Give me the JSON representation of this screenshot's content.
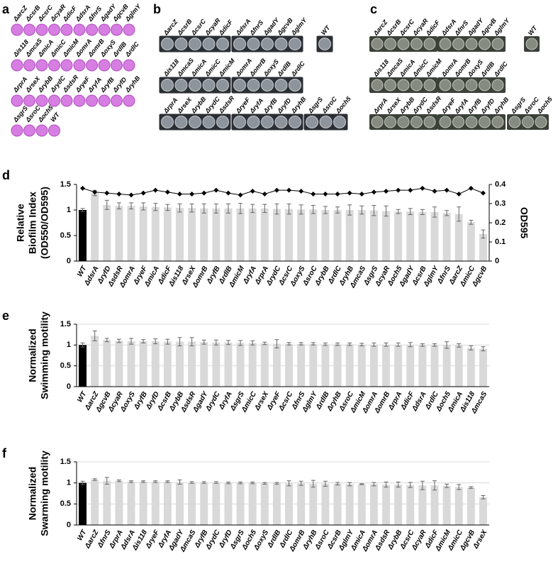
{
  "plates": [
    {
      "label": "a",
      "rows": [
        [
          [
            "ΔarcZ",
            "ΔcsrB",
            "ΔcsrC",
            "ΔcyaR",
            "ΔdicF"
          ],
          [
            "ΔdsrA",
            "ΔfnrS",
            "ΔgadY",
            "ΔgcvB",
            "ΔglmY"
          ]
        ],
        [
          [
            "Δis118",
            "ΔmcaS",
            "ΔmicA",
            "ΔmicC",
            "ΔmicM"
          ],
          [
            "ΔomrA",
            "ΔomrB",
            "ΔoxyS",
            "ΔrdlB",
            "ΔrdlC"
          ]
        ],
        [
          [
            "ΔrprA",
            "ΔrseX",
            "ΔrybB",
            "ΔrydC",
            "ΔsdsR"
          ],
          [
            "ΔryeF",
            "ΔryfA",
            "ΔryfB",
            "ΔryfD",
            "ΔryhB"
          ]
        ],
        [
          [
            "ΔsgrS",
            "ΔsroC",
            "Δoch5",
            "WT"
          ]
        ]
      ]
    },
    {
      "label": "b",
      "rows": [
        [
          [
            "ΔarcZ",
            "ΔcsrB",
            "ΔcsrC",
            "ΔcyaR",
            "ΔdicF"
          ],
          [
            "ΔdsrA",
            "ΔfnrS",
            "ΔgadY",
            "ΔgcvB",
            "ΔglmY"
          ],
          [
            "WT"
          ]
        ],
        [
          [
            "Δis118",
            "ΔmcaS",
            "ΔmicA",
            "ΔmicC",
            "ΔmicM"
          ],
          [
            "ΔomrA",
            "ΔomrB",
            "ΔoxyS",
            "ΔrdlB",
            "ΔrdlC"
          ]
        ],
        [
          [
            "ΔrprA",
            "ΔrseX",
            "ΔrybB",
            "ΔrydC",
            "ΔsdsR"
          ],
          [
            "ΔryeF",
            "ΔryfA",
            "ΔryfB",
            "ΔryfD",
            "ΔryhB"
          ],
          [
            "ΔsgrS",
            "ΔsroC",
            "Δoch5"
          ]
        ]
      ]
    },
    {
      "label": "c",
      "rows": [
        [
          [
            "ΔarcZ",
            "ΔcsrB",
            "ΔcsrC",
            "ΔcyaR",
            "ΔdicF"
          ],
          [
            "ΔdsrA",
            "ΔfnrS",
            "ΔgadY",
            "ΔgcvB",
            "ΔglmY"
          ],
          [
            "WT"
          ]
        ],
        [
          [
            "Δis118",
            "ΔmcaS",
            "ΔmicA",
            "ΔmicC",
            "ΔmicM"
          ],
          [
            "ΔomrA",
            "ΔomrB",
            "ΔoxyS",
            "ΔrdlB",
            "ΔrdlC"
          ]
        ],
        [
          [
            "ΔrprA",
            "ΔrseX",
            "ΔrybB",
            "ΔrydC",
            "ΔsdsR"
          ],
          [
            "ΔryeF",
            "ΔryfA",
            "ΔryfB",
            "ΔryfD",
            "ΔryhB"
          ],
          [
            "ΔsgrS",
            "ΔsroC",
            "Δoch5"
          ]
        ]
      ]
    }
  ],
  "chart_data": [
    {
      "type": "bar",
      "panel": "d",
      "ylabel": [
        "Relative",
        "Biofilm Index",
        "(OD550/OD595)"
      ],
      "y2label": "OD595",
      "categories": [
        "WT",
        "ΔdsrA",
        "ΔryfD",
        "ΔsdsR",
        "ΔomrA",
        "ΔryeF",
        "ΔmicA",
        "ΔdicF",
        "Δis118",
        "ΔrseX",
        "ΔomrB",
        "ΔryfB",
        "ΔrdlB",
        "ΔmicM",
        "ΔryfA",
        "ΔrprA",
        "ΔrydC",
        "ΔcsrC",
        "ΔoxyS",
        "ΔsroC",
        "ΔrybB",
        "ΔrdlC",
        "ΔryhB",
        "ΔmcaS",
        "ΔsgrS",
        "ΔcyaR",
        "Δoch5",
        "ΔgadY",
        "ΔcsrB",
        "ΔglmY",
        "ΔfnrS",
        "ΔarcZ",
        "ΔmicC",
        "ΔgcvB"
      ],
      "series": [
        {
          "type": "bar",
          "values": [
            1,
            1.33,
            1.1,
            1.08,
            1.08,
            1.07,
            1.06,
            1.05,
            1.04,
            1.04,
            1.03,
            1.03,
            1.03,
            1.03,
            1.03,
            1.03,
            1.02,
            1.02,
            1.01,
            1.01,
            1.0,
            1.0,
            1.0,
            1.0,
            0.99,
            0.98,
            0.97,
            0.97,
            0.96,
            0.96,
            0.94,
            0.92,
            0.76,
            0.53
          ],
          "errors": [
            0.03,
            0.05,
            0.09,
            0.06,
            0.06,
            0.07,
            0.07,
            0.06,
            0.08,
            0.08,
            0.09,
            0.09,
            0.09,
            0.1,
            0.08,
            0.08,
            0.1,
            0.1,
            0.09,
            0.08,
            0.07,
            0.06,
            0.1,
            0.08,
            0.1,
            0.1,
            0.04,
            0.06,
            0.05,
            0.1,
            0.05,
            0.14,
            0.04,
            0.08
          ],
          "colors": [
            "#000000",
            "#d9d9d9",
            "#d9d9d9",
            "#d9d9d9",
            "#d9d9d9",
            "#d9d9d9",
            "#d9d9d9",
            "#d9d9d9",
            "#d9d9d9",
            "#d9d9d9",
            "#d9d9d9",
            "#d9d9d9",
            "#d9d9d9",
            "#d9d9d9",
            "#d9d9d9",
            "#d9d9d9",
            "#d9d9d9",
            "#d9d9d9",
            "#d9d9d9",
            "#d9d9d9",
            "#d9d9d9",
            "#d9d9d9",
            "#d9d9d9",
            "#d9d9d9",
            "#d9d9d9",
            "#d9d9d9",
            "#d9d9d9",
            "#d9d9d9",
            "#d9d9d9",
            "#d9d9d9",
            "#d9d9d9",
            "#d9d9d9",
            "#d9d9d9",
            "#d9d9d9"
          ]
        },
        {
          "type": "line",
          "axis": "y2",
          "color": "#000000",
          "values": [
            0.38,
            0.36,
            0.355,
            0.35,
            0.345,
            0.355,
            0.37,
            0.36,
            0.35,
            0.35,
            0.355,
            0.37,
            0.355,
            0.345,
            0.365,
            0.35,
            0.37,
            0.37,
            0.365,
            0.35,
            0.35,
            0.35,
            0.355,
            0.35,
            0.36,
            0.365,
            0.37,
            0.37,
            0.38,
            0.365,
            0.37,
            0.35,
            0.38,
            0.355
          ]
        }
      ],
      "ylim": [
        0,
        1.5
      ],
      "yticks": [
        0,
        0.5,
        1,
        1.5
      ],
      "y2lim": [
        0,
        0.4
      ],
      "y2ticks": [
        0,
        0.1,
        0.2,
        0.3,
        0.4
      ],
      "grid": false
    },
    {
      "type": "bar",
      "panel": "e",
      "ylabel": [
        "Normalized",
        "Swimming motility"
      ],
      "categories": [
        "WT",
        "ΔarcZ",
        "ΔgcvB",
        "ΔcyaR",
        "ΔoxyS",
        "ΔryfB",
        "ΔryfD",
        "ΔcsrB",
        "ΔrybB",
        "ΔsdsR",
        "ΔgadY",
        "ΔrydC",
        "ΔryfA",
        "ΔsgrS",
        "ΔmicC",
        "ΔrseX",
        "ΔryeF",
        "ΔcsrC",
        "ΔfnrS",
        "ΔglmY",
        "ΔrdlB",
        "ΔryhB",
        "ΔsroC",
        "ΔmicM",
        "ΔomrA",
        "ΔomrB",
        "ΔrprA",
        "ΔdicF",
        "ΔdsrA",
        "ΔrdlC",
        "Δoch5",
        "ΔmicA",
        "Δis118",
        "ΔmcaS"
      ],
      "series": [
        {
          "type": "bar",
          "values": [
            1,
            1.22,
            1.12,
            1.1,
            1.09,
            1.09,
            1.09,
            1.08,
            1.08,
            1.08,
            1.07,
            1.06,
            1.06,
            1.05,
            1.05,
            1.04,
            1.03,
            1.03,
            1.03,
            1.03,
            1.02,
            1.02,
            1.02,
            1.01,
            1.01,
            1.01,
            1.01,
            1.01,
            1.0,
            1.0,
            1.0,
            0.99,
            0.93,
            0.91
          ],
          "errors": [
            0.05,
            0.12,
            0.04,
            0.04,
            0.07,
            0.04,
            0.06,
            0.06,
            0.1,
            0.1,
            0.05,
            0.06,
            0.05,
            0.06,
            0.05,
            0.03,
            0.1,
            0.03,
            0.03,
            0.03,
            0.03,
            0.03,
            0.03,
            0.03,
            0.04,
            0.04,
            0.04,
            0.05,
            0.03,
            0.03,
            0.08,
            0.04,
            0.05,
            0.05
          ],
          "colors": [
            "#000000",
            "#d9d9d9",
            "#d9d9d9",
            "#d9d9d9",
            "#d9d9d9",
            "#d9d9d9",
            "#d9d9d9",
            "#d9d9d9",
            "#d9d9d9",
            "#d9d9d9",
            "#d9d9d9",
            "#d9d9d9",
            "#d9d9d9",
            "#d9d9d9",
            "#d9d9d9",
            "#d9d9d9",
            "#d9d9d9",
            "#d9d9d9",
            "#d9d9d9",
            "#d9d9d9",
            "#d9d9d9",
            "#d9d9d9",
            "#d9d9d9",
            "#d9d9d9",
            "#d9d9d9",
            "#d9d9d9",
            "#d9d9d9",
            "#d9d9d9",
            "#d9d9d9",
            "#d9d9d9",
            "#d9d9d9",
            "#d9d9d9",
            "#d9d9d9",
            "#d9d9d9"
          ]
        }
      ],
      "ylim": [
        0,
        1.5
      ],
      "yticks": [
        0,
        0.5,
        1,
        1.5
      ],
      "grid": true
    },
    {
      "type": "bar",
      "panel": "f",
      "ylabel": [
        "Normalized",
        "Swarming motility"
      ],
      "categories": [
        "WT",
        "ΔarcZ",
        "ΔfnrS",
        "ΔrprA",
        "ΔdsrA",
        "Δis118",
        "ΔryeF",
        "ΔryfA",
        "ΔgadY",
        "ΔmcaS",
        "ΔryfB",
        "ΔrydC",
        "ΔryfD",
        "ΔsgrS",
        "Δoch5",
        "ΔoxyS",
        "ΔrdlB",
        "ΔrdlC",
        "ΔomrB",
        "ΔryhB",
        "ΔsroC",
        "ΔcsrB",
        "ΔglmY",
        "ΔmicA",
        "ΔomrA",
        "ΔsdsR",
        "ΔrybB",
        "ΔcsrC",
        "ΔcyaR",
        "ΔdicF",
        "ΔmicM",
        "ΔmicC",
        "ΔgcvB",
        "ΔrseX"
      ],
      "series": [
        {
          "type": "bar",
          "values": [
            1,
            1.08,
            1.05,
            1.05,
            1.03,
            1.03,
            1.03,
            1.03,
            1.02,
            1.01,
            1.01,
            1.01,
            1.0,
            1.0,
            1.0,
            0.99,
            0.99,
            0.99,
            0.99,
            0.98,
            0.98,
            0.98,
            0.97,
            0.97,
            0.97,
            0.96,
            0.96,
            0.95,
            0.94,
            0.94,
            0.93,
            0.9,
            0.89,
            0.66
          ],
          "errors": [
            0.04,
            0.02,
            0.08,
            0.02,
            0.02,
            0.02,
            0.02,
            0.02,
            0.05,
            0.02,
            0.02,
            0.02,
            0.02,
            0.02,
            0.02,
            0.02,
            0.02,
            0.06,
            0.05,
            0.08,
            0.06,
            0.03,
            0.04,
            0.01,
            0.04,
            0.06,
            0.06,
            0.06,
            0.1,
            0.11,
            0.04,
            0.06,
            0.02,
            0.04
          ],
          "colors": [
            "#000000",
            "#d9d9d9",
            "#d9d9d9",
            "#d9d9d9",
            "#d9d9d9",
            "#d9d9d9",
            "#d9d9d9",
            "#d9d9d9",
            "#d9d9d9",
            "#d9d9d9",
            "#d9d9d9",
            "#d9d9d9",
            "#d9d9d9",
            "#d9d9d9",
            "#d9d9d9",
            "#d9d9d9",
            "#d9d9d9",
            "#d9d9d9",
            "#d9d9d9",
            "#d9d9d9",
            "#d9d9d9",
            "#d9d9d9",
            "#d9d9d9",
            "#d9d9d9",
            "#d9d9d9",
            "#d9d9d9",
            "#d9d9d9",
            "#d9d9d9",
            "#d9d9d9",
            "#d9d9d9",
            "#d9d9d9",
            "#d9d9d9",
            "#d9d9d9",
            "#d9d9d9"
          ]
        }
      ],
      "ylim": [
        0,
        1.5
      ],
      "yticks": [
        0,
        0.5,
        1,
        1.5
      ],
      "grid": true
    }
  ]
}
